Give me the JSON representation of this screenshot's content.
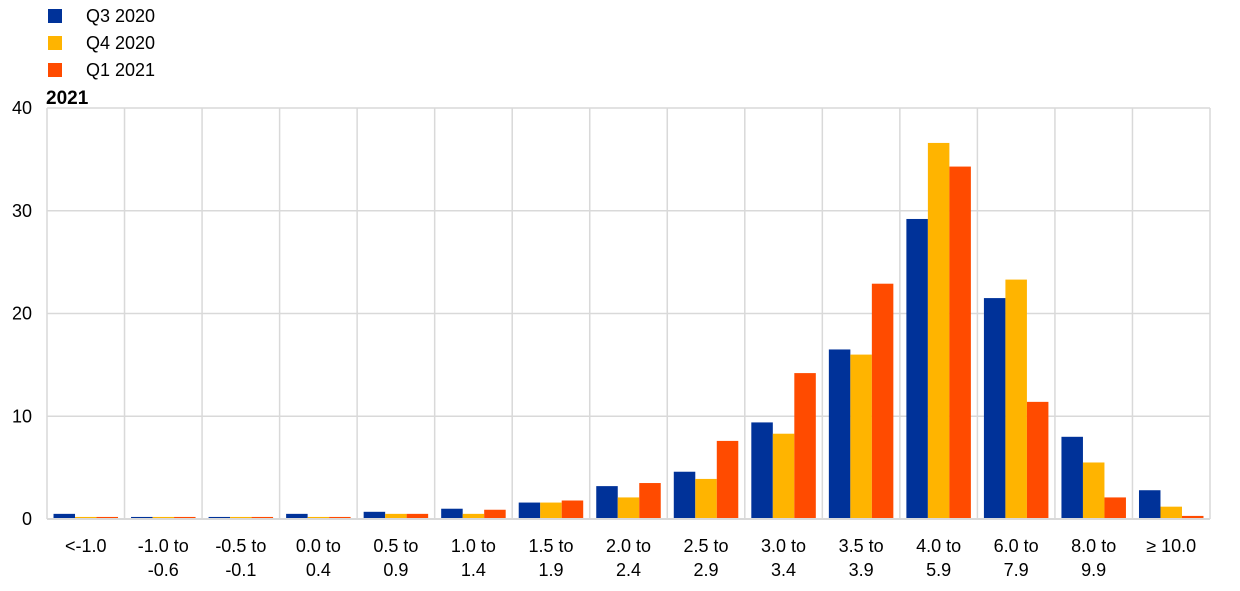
{
  "chart_data": {
    "type": "bar",
    "title": "2021",
    "categories": [
      [
        "<-1.0"
      ],
      [
        "-1.0 to",
        "-0.6"
      ],
      [
        "-0.5 to",
        "-0.1"
      ],
      [
        "0.0 to",
        "0.4"
      ],
      [
        "0.5 to",
        "0.9"
      ],
      [
        "1.0  to",
        "1.4"
      ],
      [
        "1.5  to",
        "1.9"
      ],
      [
        "2.0  to",
        "2.4"
      ],
      [
        "2.5  to",
        "2.9"
      ],
      [
        "3.0  to",
        "3.4"
      ],
      [
        "3.5  to",
        "3.9"
      ],
      [
        "4.0 to",
        "5.9"
      ],
      [
        "6.0 to",
        "7.9"
      ],
      [
        "8.0 to",
        "9.9"
      ],
      [
        "≥ 10.0"
      ]
    ],
    "series": [
      {
        "name": "Q3 2020",
        "color": "#003299",
        "values": [
          0.5,
          0.2,
          0.2,
          0.5,
          0.7,
          1.0,
          1.6,
          3.2,
          4.6,
          9.4,
          16.5,
          29.2,
          21.5,
          8.0,
          2.8
        ]
      },
      {
        "name": "Q4 2020",
        "color": "#FFB400",
        "values": [
          0.2,
          0.2,
          0.2,
          0.2,
          0.5,
          0.5,
          1.6,
          2.1,
          3.9,
          8.3,
          16.0,
          36.6,
          23.3,
          5.5,
          1.2
        ]
      },
      {
        "name": "Q1 2021",
        "color": "#FF4B00",
        "values": [
          0.2,
          0.2,
          0.2,
          0.2,
          0.5,
          0.9,
          1.8,
          3.5,
          7.6,
          14.2,
          22.9,
          34.3,
          11.4,
          2.1,
          0.3
        ]
      }
    ],
    "ylim": [
      0,
      40
    ],
    "yticks": [
      0,
      10,
      20,
      30,
      40
    ],
    "grid": true,
    "legend_position": "top-left"
  }
}
